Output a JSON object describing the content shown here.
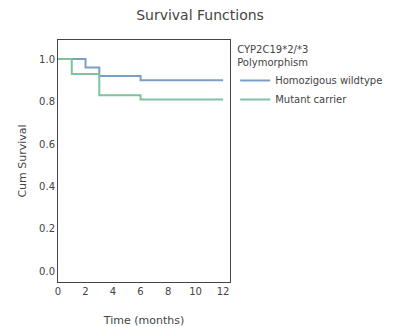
{
  "chart_data": {
    "type": "line",
    "title": "Survival Functions",
    "x_label": "Time (months)",
    "y_label": "Cum Survival",
    "legend_title": "CYP2C19*2/*3\nPolymorphism",
    "series": [
      {
        "name": "Homozigous wildtype",
        "color": "#7b9ec9",
        "x": [
          0,
          2,
          2,
          3,
          3,
          6,
          6,
          12
        ],
        "values": [
          1.0,
          1.0,
          0.96,
          0.96,
          0.92,
          0.92,
          0.9,
          0.9
        ]
      },
      {
        "name": "Mutant carrier",
        "color": "#7bc49e",
        "x": [
          0,
          1,
          1,
          3,
          3,
          6,
          6,
          12
        ],
        "values": [
          1.0,
          1.0,
          0.93,
          0.93,
          0.83,
          0.83,
          0.81,
          0.81
        ]
      }
    ],
    "xlim": [
      0,
      12.5
    ],
    "ylim": [
      -0.05,
      1.09
    ],
    "xticks": [
      0,
      2,
      4,
      6,
      8,
      10,
      12
    ],
    "yticks": [
      {
        "value": 0.0,
        "label": "0.0"
      },
      0.2,
      0.4,
      0.6,
      0.8,
      {
        "value": 1.0,
        "label": "1.0"
      }
    ],
    "grid": false,
    "legend": "right"
  }
}
